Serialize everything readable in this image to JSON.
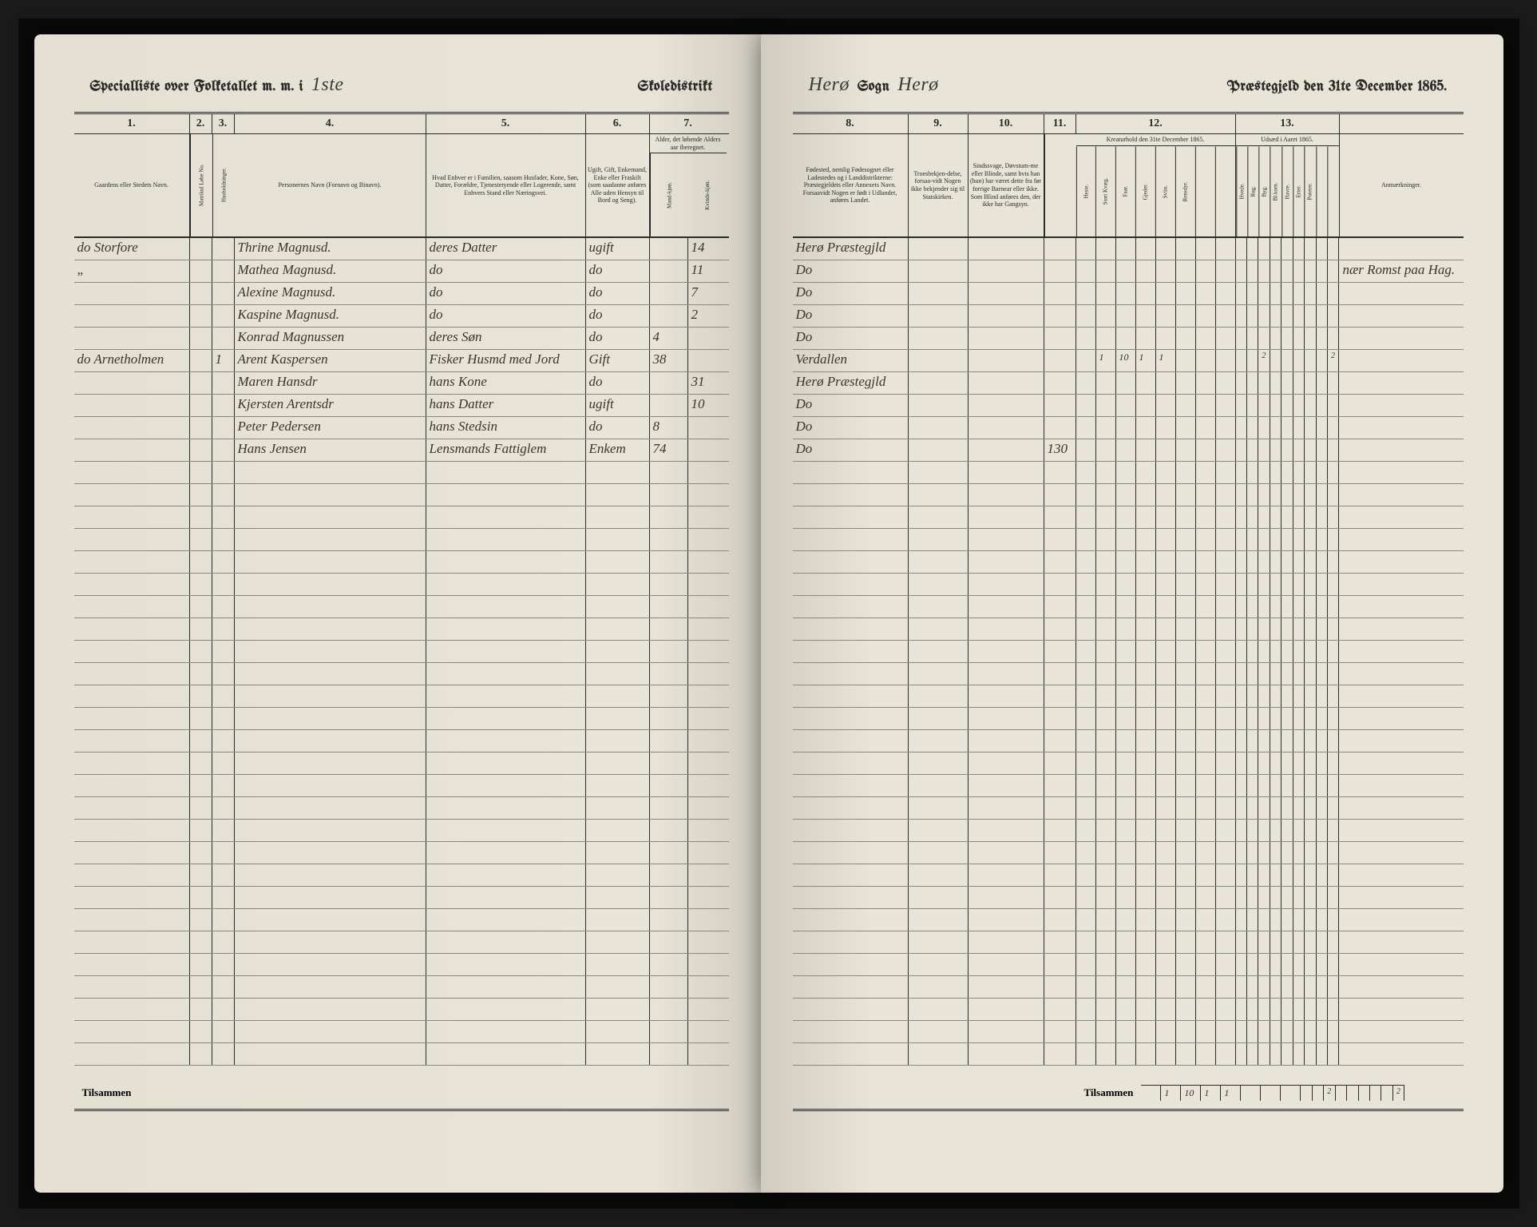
{
  "title_left": {
    "printed1": "Specialliste over Folketallet m. m. i",
    "script": "1ste",
    "printed2": "Skoledistrikt"
  },
  "title_right": {
    "script1": "Herø",
    "printed1": "Sogn",
    "script2": "Herø",
    "printed2": "Præstegjeld den 31te December 1865."
  },
  "column_numbers_left": [
    "1.",
    "2.",
    "3.",
    "4.",
    "5.",
    "6.",
    "7."
  ],
  "column_numbers_right": [
    "8.",
    "9.",
    "10.",
    "11.",
    "12.",
    "13."
  ],
  "subheads_left": {
    "c1": "Gaardens eller Stedets\nNavn.",
    "c2": "Matrikul Løbe No.",
    "c3": "Husholdninger.",
    "c4": "Personernes Navn (Fornavn og Binavn).",
    "c5": "Hvad Enhver er i Familien, saasom Husfader, Kone, Søn, Datter, Forældre, Tjenestetyende eller Logerende, samt Enhvers Stand eller Næringsvei.",
    "c6": "Ugift, Gift, Enkemand, Enke eller Fraskilt (som saadanne anføres Alle uden Hensyn til Bord og Seng).",
    "c7": "Alder, det løbende Alders aar iberegnet.",
    "c7a": "Mand-kjøn.",
    "c7b": "Kvinde-kjøn."
  },
  "subheads_right": {
    "c8": "Fødested, nemlig Fødesognet eller Ladestedes og i Landdistrikterne: Præstegjeldets eller Annexets Navn. Forsaavidt Nogen er født i Udlandet, anføres Landet.",
    "c9": "Troesbekjen-delse, forsaa-vidt Nogen ikke bekjender sig til Statskirken.",
    "c10": "Sindssvage, Døvstum-me eller Blinde, samt hvis han (hun) har været dette fra før forrige Barnear eller ikke. Som Blind anføres den, der ikke har Gangsyn.",
    "c11": "",
    "c12": "Kreaturhold den 31te December 1865.",
    "c12_sub": [
      "Heste.",
      "Stort Kvæg.",
      "Faar.",
      "Gjeder.",
      "Sviin.",
      "Rensdyr."
    ],
    "c13": "Udsæd i Aaret 1865.",
    "c13_sub": [
      "Hvede.",
      "Rug.",
      "Byg.",
      "Bl.korn.",
      "Havre.",
      "Erter.",
      "Poteter."
    ],
    "rem": "Anmærkninger."
  },
  "rows_left": [
    {
      "c1": "do Storfore",
      "c2": "",
      "c3": "",
      "c4": "Thrine Magnusd.",
      "c5": "deres Datter",
      "c6": "ugift",
      "c7a": "",
      "c7b": "14"
    },
    {
      "c1": "„",
      "c2": "",
      "c3": "",
      "c4": "Mathea Magnusd.",
      "c5": "do",
      "c6": "do",
      "c7a": "",
      "c7b": "11"
    },
    {
      "c1": "",
      "c2": "",
      "c3": "",
      "c4": "Alexine Magnusd.",
      "c5": "do",
      "c6": "do",
      "c7a": "",
      "c7b": "7"
    },
    {
      "c1": "",
      "c2": "",
      "c3": "",
      "c4": "Kaspine Magnusd.",
      "c5": "do",
      "c6": "do",
      "c7a": "",
      "c7b": "2"
    },
    {
      "c1": "",
      "c2": "",
      "c3": "",
      "c4": "Konrad Magnussen",
      "c5": "deres Søn",
      "c6": "do",
      "c7a": "4",
      "c7b": ""
    },
    {
      "c1": "do Arnetholmen",
      "c2": "",
      "c3": "1",
      "c4": "Arent Kaspersen",
      "c5": "Fisker Husmd med Jord",
      "c6": "Gift",
      "c7a": "38",
      "c7b": ""
    },
    {
      "c1": "",
      "c2": "",
      "c3": "",
      "c4": "Maren Hansdr",
      "c5": "hans Kone",
      "c6": "do",
      "c7a": "",
      "c7b": "31"
    },
    {
      "c1": "",
      "c2": "",
      "c3": "",
      "c4": "Kjersten Arentsdr",
      "c5": "hans Datter",
      "c6": "ugift",
      "c7a": "",
      "c7b": "10"
    },
    {
      "c1": "",
      "c2": "",
      "c3": "",
      "c4": "Peter Pedersen",
      "c5": "hans Stedsin",
      "c6": "do",
      "c7a": "8",
      "c7b": ""
    },
    {
      "c1": "",
      "c2": "",
      "c3": "",
      "c4": "Hans Jensen",
      "c5": "Lensmands Fattiglem",
      "c6": "Enkem",
      "c7a": "74",
      "c7b": ""
    }
  ],
  "rows_right": [
    {
      "c8": "Herø Præstegjld",
      "c9": "",
      "c10": "",
      "c11": "",
      "k": [
        "",
        "",
        "",
        "",
        "",
        "",
        "",
        "",
        ""
      ],
      "u": [
        "",
        "",
        "",
        "",
        "",
        "",
        "",
        "",
        ""
      ],
      "rem": ""
    },
    {
      "c8": "Do",
      "c9": "",
      "c10": "",
      "c11": "",
      "k": [
        "",
        "",
        "",
        "",
        "",
        "",
        "",
        "",
        ""
      ],
      "u": [
        "",
        "",
        "",
        "",
        "",
        "",
        "",
        "",
        ""
      ],
      "rem": "nær Romst paa Hag."
    },
    {
      "c8": "Do",
      "c9": "",
      "c10": "",
      "c11": "",
      "k": [
        "",
        "",
        "",
        "",
        "",
        "",
        "",
        "",
        ""
      ],
      "u": [
        "",
        "",
        "",
        "",
        "",
        "",
        "",
        "",
        ""
      ],
      "rem": ""
    },
    {
      "c8": "Do",
      "c9": "",
      "c10": "",
      "c11": "",
      "k": [
        "",
        "",
        "",
        "",
        "",
        "",
        "",
        "",
        ""
      ],
      "u": [
        "",
        "",
        "",
        "",
        "",
        "",
        "",
        "",
        ""
      ],
      "rem": ""
    },
    {
      "c8": "Do",
      "c9": "",
      "c10": "",
      "c11": "",
      "k": [
        "",
        "",
        "",
        "",
        "",
        "",
        "",
        "",
        ""
      ],
      "u": [
        "",
        "",
        "",
        "",
        "",
        "",
        "",
        "",
        ""
      ],
      "rem": ""
    },
    {
      "c8": "Verdallen",
      "c9": "",
      "c10": "",
      "c11": "",
      "k": [
        "",
        "1",
        "10",
        "1",
        "1",
        "",
        "",
        "",
        ""
      ],
      "u": [
        "",
        "",
        "2",
        "",
        "",
        "",
        "",
        "",
        "2"
      ],
      "rem": ""
    },
    {
      "c8": "Herø Præstegjld",
      "c9": "",
      "c10": "",
      "c11": "",
      "k": [
        "",
        "",
        "",
        "",
        "",
        "",
        "",
        "",
        ""
      ],
      "u": [
        "",
        "",
        "",
        "",
        "",
        "",
        "",
        "",
        ""
      ],
      "rem": ""
    },
    {
      "c8": "Do",
      "c9": "",
      "c10": "",
      "c11": "",
      "k": [
        "",
        "",
        "",
        "",
        "",
        "",
        "",
        "",
        ""
      ],
      "u": [
        "",
        "",
        "",
        "",
        "",
        "",
        "",
        "",
        ""
      ],
      "rem": ""
    },
    {
      "c8": "Do",
      "c9": "",
      "c10": "",
      "c11": "",
      "k": [
        "",
        "",
        "",
        "",
        "",
        "",
        "",
        "",
        ""
      ],
      "u": [
        "",
        "",
        "",
        "",
        "",
        "",
        "",
        "",
        ""
      ],
      "rem": ""
    },
    {
      "c8": "Do",
      "c9": "",
      "c10": "",
      "c11": "130",
      "k": [
        "",
        "",
        "",
        "",
        "",
        "",
        "",
        "",
        ""
      ],
      "u": [
        "",
        "",
        "",
        "",
        "",
        "",
        "",
        "",
        ""
      ],
      "rem": ""
    }
  ],
  "footer_left": "Tilsammen",
  "footer_right": "Tilsammen",
  "footer_totals_right": {
    "k": [
      "",
      "1",
      "10",
      "1",
      "1",
      "",
      "",
      "",
      ""
    ],
    "u": [
      "",
      "",
      "2",
      "",
      "",
      "",
      "",
      "",
      "2"
    ]
  },
  "blank_rows": 27,
  "colors": {
    "paper": "#e8e4d8",
    "ink": "#2a2a2a",
    "script_ink": "#3a3528",
    "rule_light": "#888888",
    "background": "#1a1a1a"
  }
}
